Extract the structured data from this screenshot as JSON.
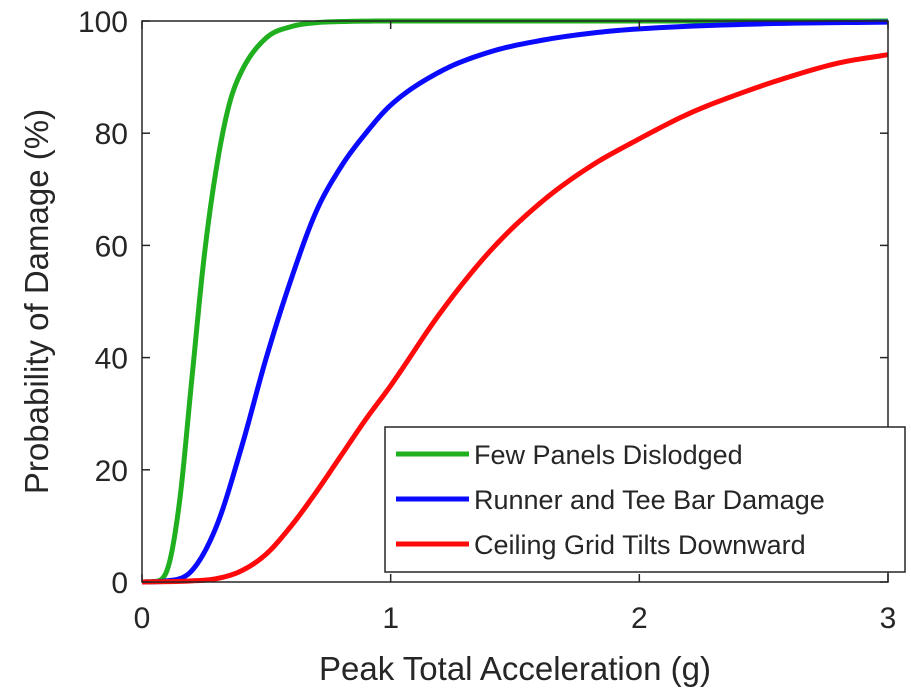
{
  "chart_data": {
    "type": "line",
    "xlabel": "Peak Total Acceleration (g)",
    "ylabel": "Probability of Damage (%)",
    "xlim": [
      0,
      3
    ],
    "ylim": [
      0,
      100
    ],
    "xticks": [
      "0",
      "1",
      "2",
      "3"
    ],
    "yticks": [
      "0",
      "20",
      "40",
      "60",
      "80",
      "100"
    ],
    "grid": false,
    "legend_position": "bottom-right",
    "series": [
      {
        "name": "Few Panels Dislodged",
        "color": "#1faf1f",
        "x": [
          0,
          0.05,
          0.1,
          0.15,
          0.2,
          0.25,
          0.3,
          0.35,
          0.4,
          0.5,
          0.6,
          0.7,
          0.8,
          1.0,
          1.5,
          2.0,
          3.0
        ],
        "y": [
          0,
          0.1,
          2,
          14,
          36,
          58,
          74,
          85,
          91,
          97,
          99,
          99.7,
          99.9,
          100,
          100,
          100,
          100
        ]
      },
      {
        "name": "Runner and Tee Bar Damage",
        "color": "#0a0aff",
        "x": [
          0,
          0.1,
          0.2,
          0.3,
          0.4,
          0.5,
          0.6,
          0.7,
          0.8,
          0.9,
          1.0,
          1.2,
          1.4,
          1.6,
          1.8,
          2.0,
          2.5,
          3.0
        ],
        "y": [
          0,
          0.2,
          2,
          10,
          24,
          40,
          54,
          66,
          74,
          80,
          85,
          91,
          94.5,
          96.5,
          97.8,
          98.6,
          99.5,
          99.8
        ]
      },
      {
        "name": "Ceiling Grid Tilts Downward",
        "color": "#ff0a0a",
        "x": [
          0,
          0.2,
          0.3,
          0.4,
          0.5,
          0.6,
          0.7,
          0.8,
          0.9,
          1.0,
          1.2,
          1.4,
          1.6,
          1.8,
          2.0,
          2.2,
          2.4,
          2.6,
          2.8,
          3.0
        ],
        "y": [
          0,
          0.2,
          0.6,
          2,
          5,
          10,
          16,
          22.5,
          29,
          35,
          48,
          59,
          67.5,
          74,
          79,
          83.5,
          87,
          90,
          92.5,
          94
        ]
      }
    ]
  }
}
